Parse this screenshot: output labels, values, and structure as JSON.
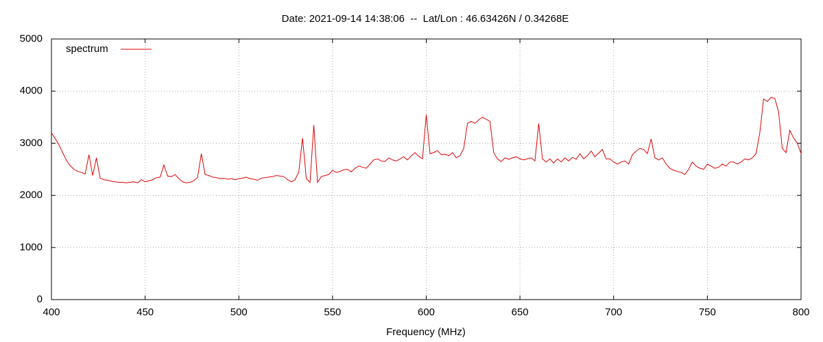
{
  "chart_data": {
    "type": "line",
    "title": "Date: 2021-09-14 14:38:06  --  Lat/Lon : 46.63426N / 0.34268E",
    "x_label": "Frequency (MHz)",
    "xlim": [
      400,
      800
    ],
    "xticks": [
      400,
      450,
      500,
      550,
      600,
      650,
      700,
      750,
      800
    ],
    "ylim": [
      0,
      5000
    ],
    "yticks": [
      0,
      1000,
      2000,
      3000,
      4000,
      5000
    ],
    "grid": true,
    "legend": "top-left",
    "x": [
      400,
      402,
      404,
      406,
      408,
      410,
      412,
      414,
      416,
      418,
      420,
      422,
      424,
      426,
      428,
      430,
      432,
      434,
      436,
      438,
      440,
      442,
      444,
      446,
      448,
      450,
      452,
      454,
      456,
      458,
      460,
      462,
      464,
      466,
      468,
      470,
      472,
      474,
      476,
      478,
      480,
      482,
      484,
      486,
      488,
      490,
      492,
      494,
      496,
      498,
      500,
      502,
      504,
      506,
      508,
      510,
      512,
      514,
      516,
      518,
      520,
      522,
      524,
      526,
      528,
      530,
      532,
      534,
      536,
      538,
      540,
      542,
      544,
      546,
      548,
      550,
      552,
      554,
      556,
      558,
      560,
      562,
      564,
      566,
      568,
      570,
      572,
      574,
      576,
      578,
      580,
      582,
      584,
      586,
      588,
      590,
      592,
      594,
      596,
      598,
      600,
      602,
      604,
      606,
      608,
      610,
      612,
      614,
      616,
      618,
      620,
      622,
      624,
      626,
      628,
      630,
      632,
      634,
      636,
      638,
      640,
      642,
      644,
      646,
      648,
      650,
      652,
      654,
      656,
      658,
      660,
      662,
      664,
      666,
      668,
      670,
      672,
      674,
      676,
      678,
      680,
      682,
      684,
      686,
      688,
      690,
      692,
      694,
      696,
      698,
      700,
      702,
      704,
      706,
      708,
      710,
      712,
      714,
      716,
      718,
      720,
      722,
      724,
      726,
      728,
      730,
      732,
      734,
      736,
      738,
      740,
      742,
      744,
      746,
      748,
      750,
      752,
      754,
      756,
      758,
      760,
      762,
      764,
      766,
      768,
      770,
      772,
      774,
      776,
      778,
      780,
      782,
      784,
      786,
      788,
      790,
      792,
      794,
      796,
      798,
      800
    ],
    "series": [
      {
        "name": "spectrum",
        "color": "#dd0000",
        "values": [
          3200,
          3090,
          2970,
          2820,
          2670,
          2570,
          2500,
          2460,
          2440,
          2410,
          2780,
          2380,
          2720,
          2330,
          2300,
          2290,
          2270,
          2260,
          2250,
          2250,
          2240,
          2250,
          2260,
          2240,
          2300,
          2260,
          2280,
          2300,
          2340,
          2350,
          2580,
          2370,
          2360,
          2400,
          2320,
          2260,
          2240,
          2250,
          2280,
          2350,
          2800,
          2400,
          2380,
          2350,
          2340,
          2320,
          2330,
          2310,
          2320,
          2300,
          2320,
          2330,
          2350,
          2320,
          2310,
          2290,
          2330,
          2340,
          2350,
          2360,
          2380,
          2370,
          2360,
          2300,
          2260,
          2300,
          2450,
          3100,
          2320,
          2250,
          3350,
          2250,
          2360,
          2380,
          2400,
          2480,
          2440,
          2460,
          2490,
          2500,
          2450,
          2520,
          2560,
          2540,
          2520,
          2600,
          2680,
          2700,
          2660,
          2650,
          2720,
          2680,
          2660,
          2700,
          2740,
          2680,
          2760,
          2820,
          2750,
          2700,
          3550,
          2800,
          2820,
          2860,
          2780,
          2790,
          2760,
          2820,
          2720,
          2760,
          2900,
          3380,
          3420,
          3380,
          3450,
          3500,
          3460,
          3420,
          2820,
          2700,
          2650,
          2720,
          2690,
          2720,
          2740,
          2700,
          2680,
          2700,
          2720,
          2660,
          3380,
          2700,
          2640,
          2700,
          2620,
          2700,
          2640,
          2720,
          2660,
          2730,
          2690,
          2800,
          2700,
          2760,
          2850,
          2740,
          2810,
          2880,
          2700,
          2700,
          2640,
          2600,
          2640,
          2660,
          2600,
          2780,
          2850,
          2900,
          2880,
          2800,
          3080,
          2720,
          2680,
          2720,
          2600,
          2520,
          2480,
          2460,
          2440,
          2400,
          2500,
          2640,
          2560,
          2520,
          2500,
          2600,
          2560,
          2520,
          2540,
          2600,
          2560,
          2640,
          2640,
          2600,
          2640,
          2700,
          2680,
          2720,
          2800,
          3200,
          3850,
          3800,
          3880,
          3860,
          3600,
          2900,
          2820,
          3250,
          3100,
          3000,
          2800
        ]
      }
    ]
  }
}
